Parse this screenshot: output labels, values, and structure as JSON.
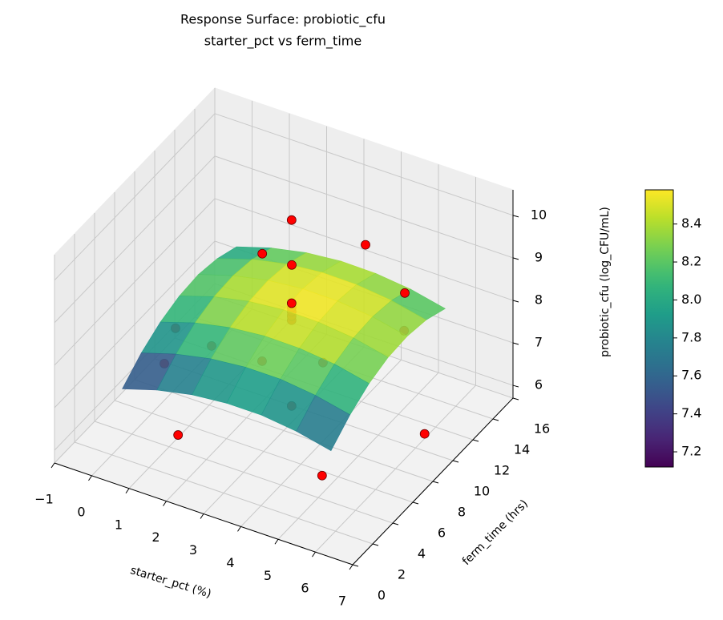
{
  "chart_data": {
    "type": "surface3d",
    "title": "Response Surface: probiotic_cfu",
    "subtitle": "starter_pct vs ferm_time",
    "x_label": "starter_pct (%)",
    "y_label": "ferm_time (hrs)",
    "z_label": "probiotic_cfu (log_CFU/mL)",
    "xlim": [
      -1,
      7
    ],
    "xticks": [
      {
        "value": -1,
        "label": "−1"
      },
      0,
      1,
      2,
      3,
      4,
      5,
      6,
      7
    ],
    "ylim": [
      0,
      16
    ],
    "yticks": [
      0,
      2,
      4,
      6,
      8,
      10,
      12,
      14,
      16
    ],
    "zlim": [
      5.7,
      10.6
    ],
    "zticks": [
      6,
      7,
      8,
      9,
      10
    ],
    "grid": true,
    "colormap": "viridis",
    "clim": [
      7.12,
      8.58
    ],
    "cticks": [
      7.2,
      7.4,
      7.6,
      7.8,
      {
        "value": 8,
        "label": "8.0"
      },
      8.2,
      8.4
    ],
    "surface": {
      "x": [
        0.2,
        1.13,
        2.07,
        3,
        3.93,
        4.87,
        5.8
      ],
      "y": [
        2.3,
        4.2,
        6.1,
        8,
        9.9,
        11.8,
        13.7
      ],
      "z": [
        [
          7.24,
          7.49,
          7.66,
          7.74,
          7.74,
          7.64,
          7.46
        ],
        [
          7.62,
          7.87,
          8.04,
          8.12,
          8.12,
          8.02,
          7.84
        ],
        [
          7.88,
          8.14,
          8.31,
          8.39,
          8.38,
          8.29,
          8.11
        ],
        [
          8.03,
          8.29,
          8.46,
          8.54,
          8.53,
          8.44,
          8.26
        ],
        [
          8.07,
          8.32,
          8.49,
          8.57,
          8.56,
          8.47,
          8.29
        ],
        [
          7.98,
          8.24,
          8.41,
          8.49,
          8.48,
          8.39,
          8.21
        ],
        [
          7.79,
          8.04,
          8.21,
          8.29,
          8.28,
          8.19,
          8.01
        ]
      ]
    },
    "points": {
      "color": "#ff0000",
      "x": [
        2.62,
        4.18,
        2.02,
        2.67,
        4.92,
        5.06,
        0.23,
        1.22,
        0.36,
        2.37,
        3.71,
        3.26,
        1.2,
        6.9,
        4.98,
        3.08,
        3.08,
        3.08,
        3.08,
        3.08
      ],
      "y": [
        10.2,
        11.77,
        9.5,
        10.03,
        12.94,
        12.35,
        7.5,
        7.42,
        5.9,
        8.18,
        9.27,
        7.82,
        4.15,
        7.55,
        4.46,
        8.49,
        8.49,
        8.49,
        8.49,
        8.49
      ],
      "z": [
        10.0,
        9.5,
        9.2,
        9.0,
        8.3,
        7.6,
        7.4,
        7.3,
        7.0,
        7.1,
        7.2,
        6.4,
        6.0,
        6.9,
        6.1,
        8.2,
        8.3,
        8.4,
        8.5,
        8.6
      ]
    }
  }
}
